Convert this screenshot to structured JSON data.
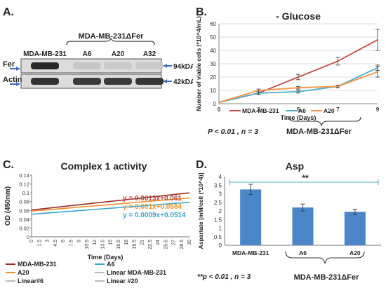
{
  "panels": {
    "a": {
      "letter": "A.",
      "group_label": "MDA-MB-231ΔFer",
      "lanes": [
        "MDA-MB-231",
        "A6",
        "A20",
        "A32"
      ],
      "rows": [
        {
          "name": "Fer",
          "size": "94kDA",
          "intensities": [
            0.95,
            0.12,
            0.1,
            0.1
          ]
        },
        {
          "name": "Actin",
          "size": "42kDA",
          "intensities": [
            0.9,
            0.85,
            0.85,
            0.88
          ]
        }
      ]
    },
    "b": {
      "letter": "B.",
      "stat": "P < 0.01 , n = 3",
      "group_label": "MDA-MB-231ΔFer"
    },
    "c": {
      "letter": "C.",
      "equations": [
        {
          "text": "y = 0.0013x+0.061",
          "color": "#b5443c"
        },
        {
          "text": "y = 0.001x+0.0584",
          "color": "#f0922f"
        },
        {
          "text": "y = 0.0009x+0.0514",
          "color": "#3aa6c6"
        }
      ],
      "legend": [
        {
          "text": "MDA-MB-231",
          "color": "#9b2a2a",
          "style": "thick"
        },
        {
          "text": "A6",
          "color": "#3aa6c6",
          "style": "thick"
        },
        {
          "text": "A20",
          "color": "#f0922f",
          "style": "thick"
        },
        {
          "text": "Linear MDA-MB-231",
          "color": "#777777",
          "style": "thin"
        },
        {
          "text": "Linear#6",
          "color": "#777777",
          "style": "thin"
        },
        {
          "text": "Linear #20",
          "color": "#777777",
          "style": "thin"
        }
      ]
    },
    "d": {
      "letter": "D.",
      "significance": "**",
      "stat": "**p < 0.01 , n = 3",
      "group_label": "MDA-MB-231ΔFer"
    }
  },
  "chart_data": [
    {
      "type": "line",
      "title": "- Glucose",
      "xlabel": "Time (Days)",
      "ylabel": "Number of viable cells (*10^4/mL)",
      "categories": [
        "0",
        "2",
        "5",
        "7",
        "9"
      ],
      "ylim": [
        0,
        60
      ],
      "yticks": [
        0,
        10,
        20,
        30,
        40,
        50,
        60
      ],
      "grid": "horizontal",
      "legend_position": "bottom",
      "series": [
        {
          "name": "MDA-MB-231",
          "color": "#c0504d",
          "values": [
            1,
            8,
            20,
            32,
            48
          ],
          "errors": [
            0,
            1,
            2,
            3,
            8
          ]
        },
        {
          "name": "A6",
          "color": "#4bacc6",
          "values": [
            1,
            8,
            9,
            13,
            27
          ],
          "errors": [
            0,
            1,
            1,
            1,
            2
          ]
        },
        {
          "name": "A20",
          "color": "#f79646",
          "values": [
            1,
            10,
            12,
            13,
            24
          ],
          "errors": [
            0,
            1,
            1,
            1,
            4
          ]
        }
      ]
    },
    {
      "type": "line",
      "title": "Complex 1 activity",
      "xlabel": "Time (Days)",
      "ylabel": "OD (450nm)",
      "ylim": [
        0,
        0.14
      ],
      "yticks": [
        0,
        0.02,
        0.04,
        0.06,
        0.08,
        0.1,
        0.12,
        0.14
      ],
      "ytick_labels": [
        "0",
        "0.02",
        "0.04",
        "0.06",
        "0.08",
        "0.1",
        "0.12",
        "0.14"
      ],
      "xlim": [
        0,
        30
      ],
      "xticks": [
        "0",
        "1.5",
        "3",
        "4.5",
        "6",
        "7.5",
        "9",
        "10.5",
        "12",
        "13.5",
        "15",
        "16.5",
        "18",
        "19.5",
        "21",
        "22.5",
        "24",
        "25.5",
        "27",
        "28.5",
        "30"
      ],
      "series": [
        {
          "name": "MDA-MB-231",
          "color": "#9b2a2a",
          "slope": 0.0013,
          "intercept": 0.061
        },
        {
          "name": "A20",
          "color": "#f0922f",
          "slope": 0.001,
          "intercept": 0.0584
        },
        {
          "name": "A6",
          "color": "#3aa6c6",
          "slope": 0.0009,
          "intercept": 0.0514
        }
      ]
    },
    {
      "type": "bar",
      "title": "Asp",
      "ylabel": "Aspartate [mM/cell (*10^4)]",
      "categories": [
        "MDA-MB-231",
        "A6",
        "A20"
      ],
      "values": [
        3.25,
        2.2,
        1.95
      ],
      "errors": [
        0.3,
        0.2,
        0.15
      ],
      "ylim": [
        0,
        4
      ],
      "yticks": [
        0,
        0.5,
        1,
        1.5,
        2,
        2.5,
        3,
        3.5,
        4
      ],
      "ytick_labels": [
        "0",
        "0.5",
        "1",
        "1.5",
        "2",
        "2.5",
        "3",
        "3.5",
        "4"
      ],
      "color": "#4a86c8"
    }
  ]
}
